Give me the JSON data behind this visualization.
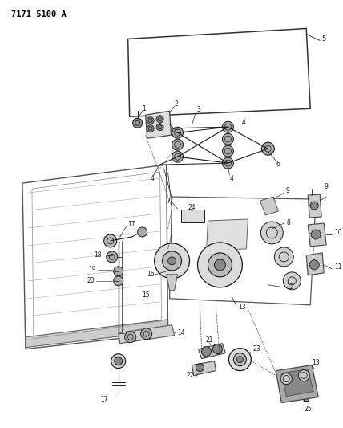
{
  "title": "7171 5100 A",
  "bg_color": "#ffffff",
  "lc": "#1a1a1a",
  "figsize": [
    4.28,
    5.33
  ],
  "dpi": 100
}
